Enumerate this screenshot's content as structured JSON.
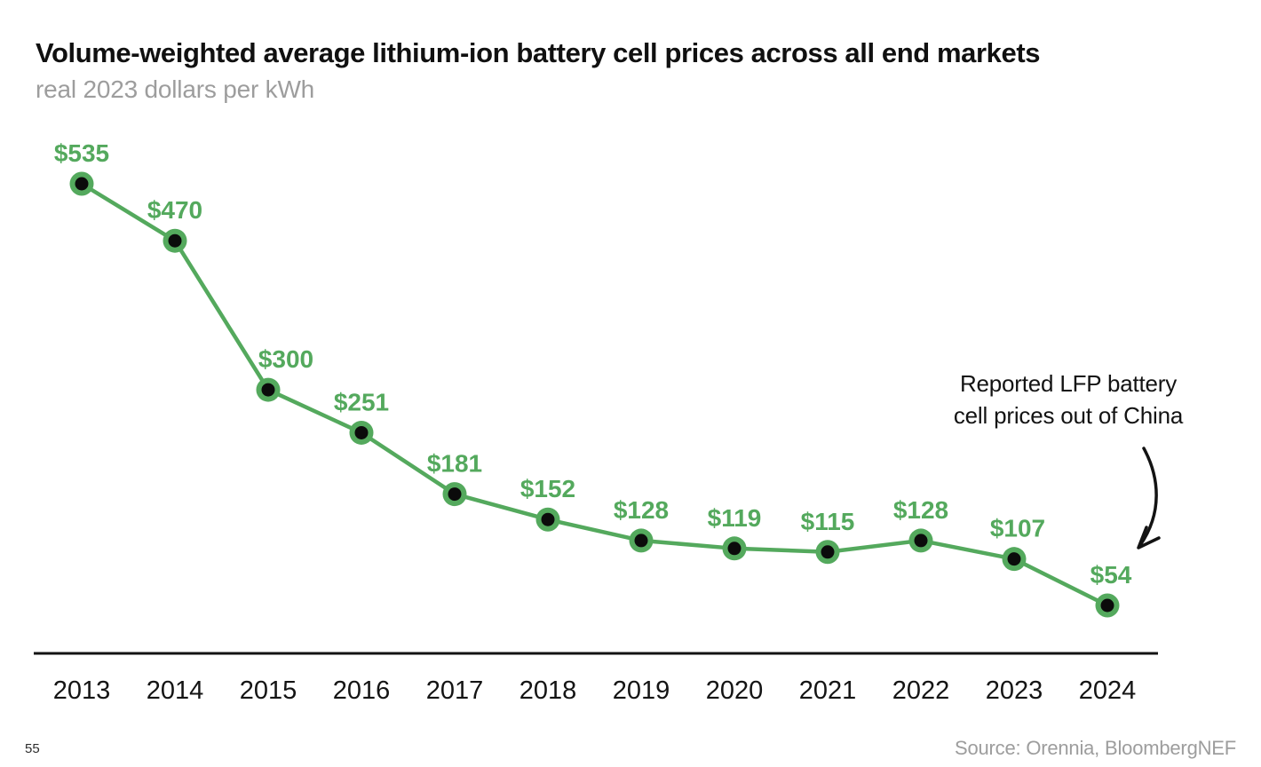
{
  "header": {
    "title": "Volume-weighted average lithium-ion battery cell prices across all end markets",
    "subtitle": "real 2023 dollars per kWh"
  },
  "chart_data": {
    "type": "line",
    "title": "Volume-weighted average lithium-ion battery cell prices across all end markets",
    "subtitle_unit": "real 2023 dollars per kWh",
    "xlabel": "",
    "ylabel": "real 2023 dollars per kWh",
    "categories": [
      "2013",
      "2014",
      "2015",
      "2016",
      "2017",
      "2018",
      "2019",
      "2020",
      "2021",
      "2022",
      "2023",
      "2024"
    ],
    "series": [
      {
        "name": "Volume-weighted average lithium-ion battery cell price",
        "values": [
          535,
          470,
          300,
          251,
          181,
          152,
          128,
          119,
          115,
          128,
          107,
          54
        ],
        "point_labels": [
          "$535",
          "$470",
          "$300",
          "$251",
          "$181",
          "$152",
          "$128",
          "$119",
          "$115",
          "$128",
          "$107",
          "$54"
        ]
      }
    ],
    "annotation_text": "Reported LFP battery cell prices out of China",
    "annotation_target_category": "2024",
    "legend": "none",
    "grid": false,
    "y_axis_shown": false,
    "marker_style": "black dot with green ring"
  },
  "annotation": {
    "line1": "Reported LFP battery",
    "line2": "cell prices out of China"
  },
  "footer": {
    "page_number": "55",
    "source": "Source: Orennia, BloombergNEF"
  },
  "colors": {
    "green": "#54A95D",
    "ink": "#131313",
    "gray": "#9D9D9D"
  }
}
